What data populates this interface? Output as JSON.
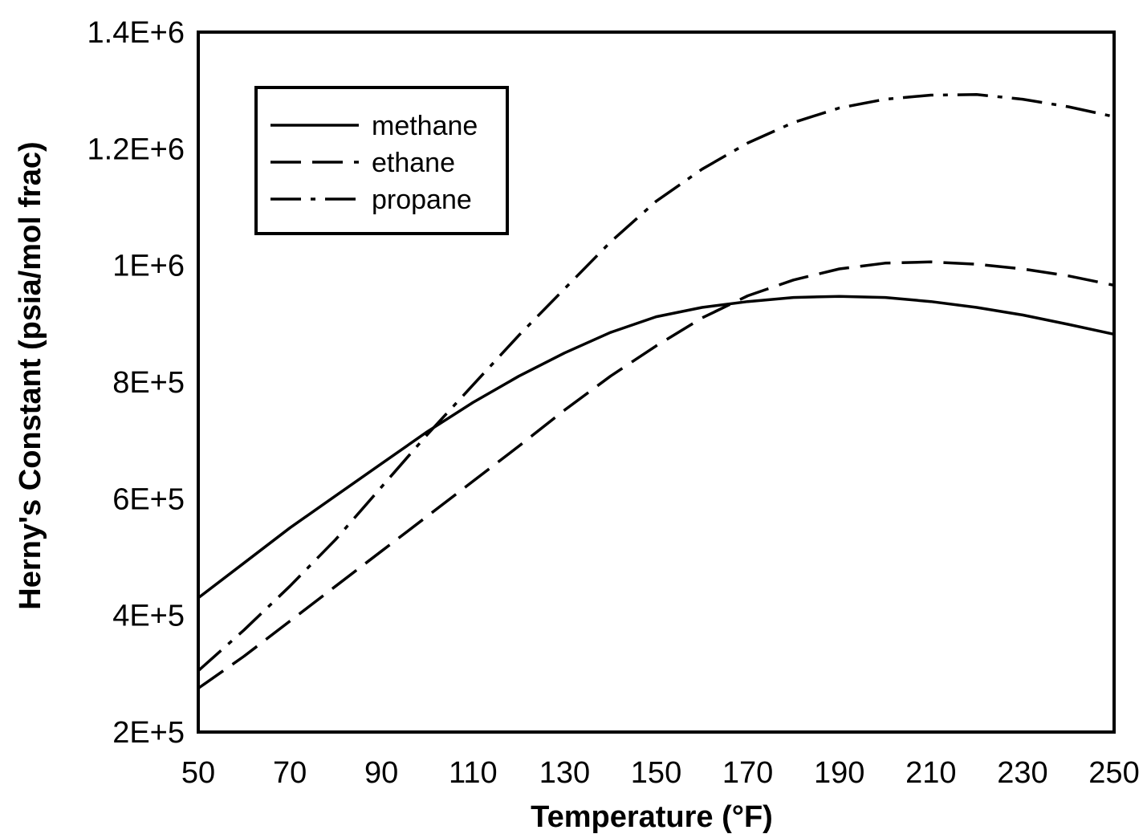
{
  "chart_data": {
    "type": "line",
    "title": "",
    "xlabel": "Temperature (°F)",
    "ylabel": "Herny's Constant (psia/mol frac)",
    "xlim": [
      50,
      250
    ],
    "ylim": [
      200000,
      1400000
    ],
    "xticks": [
      50,
      70,
      90,
      110,
      130,
      150,
      170,
      190,
      210,
      230,
      250
    ],
    "xtick_labels": [
      "50",
      "70",
      "90",
      "110",
      "130",
      "150",
      "170",
      "190",
      "210",
      "230",
      "250"
    ],
    "yticks": [
      200000,
      400000,
      600000,
      800000,
      1000000,
      1200000,
      1400000
    ],
    "ytick_labels": [
      "2E+5",
      "4E+5",
      "6E+5",
      "8E+5",
      "1E+6",
      "1.2E+6",
      "1.4E+6"
    ],
    "grid": false,
    "legend_position": "top-left",
    "series": [
      {
        "name": "methane",
        "style": "solid",
        "x": [
          50,
          60,
          70,
          80,
          90,
          100,
          110,
          120,
          130,
          140,
          150,
          160,
          170,
          180,
          190,
          200,
          210,
          220,
          230,
          240,
          250
        ],
        "y": [
          430000,
          490000,
          550000,
          605000,
          660000,
          715000,
          765000,
          810000,
          850000,
          885000,
          912000,
          928000,
          938000,
          945000,
          947000,
          945000,
          938000,
          928000,
          915000,
          899000,
          882000
        ]
      },
      {
        "name": "ethane",
        "style": "dashed",
        "x": [
          50,
          60,
          70,
          80,
          90,
          100,
          110,
          120,
          130,
          140,
          150,
          160,
          170,
          180,
          190,
          200,
          210,
          220,
          230,
          240,
          250
        ],
        "y": [
          275000,
          330000,
          390000,
          450000,
          510000,
          570000,
          630000,
          690000,
          752000,
          810000,
          862000,
          910000,
          948000,
          975000,
          994000,
          1004000,
          1006000,
          1002000,
          994000,
          982000,
          966000
        ]
      },
      {
        "name": "propane",
        "style": "dash-dot",
        "x": [
          50,
          60,
          70,
          80,
          90,
          100,
          110,
          120,
          130,
          140,
          150,
          160,
          170,
          180,
          190,
          200,
          210,
          220,
          230,
          240,
          250
        ],
        "y": [
          305000,
          375000,
          450000,
          530000,
          620000,
          710000,
          795000,
          880000,
          960000,
          1040000,
          1110000,
          1165000,
          1210000,
          1245000,
          1270000,
          1285000,
          1292000,
          1293000,
          1285000,
          1272000,
          1255000
        ]
      }
    ]
  }
}
